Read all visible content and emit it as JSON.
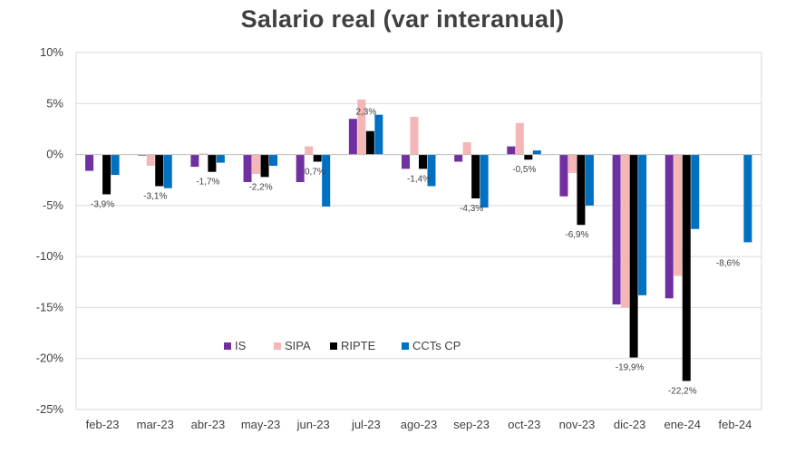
{
  "chart_data": {
    "type": "bar",
    "title": "Salario real (var interanual)",
    "xlabel": "",
    "ylabel": "",
    "categories": [
      "feb-23",
      "mar-23",
      "abr-23",
      "may-23",
      "jun-23",
      "jul-23",
      "ago-23",
      "sep-23",
      "oct-23",
      "nov-23",
      "dic-23",
      "ene-24",
      "feb-24"
    ],
    "ylim": [
      -25,
      10
    ],
    "y_ticks": [
      10,
      5,
      0,
      -5,
      -10,
      -15,
      -20,
      -25
    ],
    "y_tick_labels": [
      "10%",
      "5%",
      "0%",
      "-5%",
      "-10%",
      "-15%",
      "-20%",
      "-25%"
    ],
    "grid": true,
    "legend_position": "bottom-left",
    "series": [
      {
        "name": "IS",
        "color": "#7030A0",
        "values": [
          -1.6,
          -0.1,
          -1.2,
          -2.7,
          -2.7,
          3.5,
          -1.4,
          -0.7,
          0.8,
          -4.1,
          -14.7,
          -14.1,
          null
        ]
      },
      {
        "name": "SIPA",
        "color": "#F4B6B6",
        "values": [
          0.0,
          -1.1,
          0.1,
          -1.9,
          0.8,
          5.4,
          3.7,
          1.2,
          3.1,
          -1.8,
          -15.0,
          -11.9,
          null
        ]
      },
      {
        "name": "RIPTE",
        "color": "#000000",
        "values": [
          -3.9,
          -3.1,
          -1.7,
          -2.2,
          -0.7,
          2.3,
          -1.4,
          -4.3,
          -0.5,
          -6.9,
          -19.9,
          -22.2,
          null
        ]
      },
      {
        "name": "CCTs CP",
        "color": "#0070C0",
        "values": [
          -2.0,
          -3.3,
          -0.8,
          -1.1,
          -5.1,
          3.9,
          -3.1,
          -5.2,
          0.4,
          -5.0,
          -13.8,
          -7.3,
          -8.6
        ]
      }
    ],
    "data_labels": [
      {
        "category_index": 0,
        "text": "-3,9%",
        "value": -3.9
      },
      {
        "category_index": 1,
        "text": "-3,1%",
        "value": -3.1
      },
      {
        "category_index": 2,
        "text": "-1,7%",
        "value": -1.7
      },
      {
        "category_index": 3,
        "text": "-2,2%",
        "value": -2.2
      },
      {
        "category_index": 4,
        "text": "-0,7%",
        "value": -0.7
      },
      {
        "category_index": 5,
        "text": "2,3%",
        "value": 2.3
      },
      {
        "category_index": 6,
        "text": "-1,4%",
        "value": -1.4
      },
      {
        "category_index": 7,
        "text": "-4,3%",
        "value": -4.3
      },
      {
        "category_index": 8,
        "text": "-0,5%",
        "value": -0.5
      },
      {
        "category_index": 9,
        "text": "-6,9%",
        "value": -6.9
      },
      {
        "category_index": 10,
        "text": "-19,9%",
        "value": -19.9
      },
      {
        "category_index": 11,
        "text": "-22,2%",
        "value": -22.2
      },
      {
        "category_index": 12,
        "text": "-8,6%",
        "value": -8.6
      }
    ]
  }
}
